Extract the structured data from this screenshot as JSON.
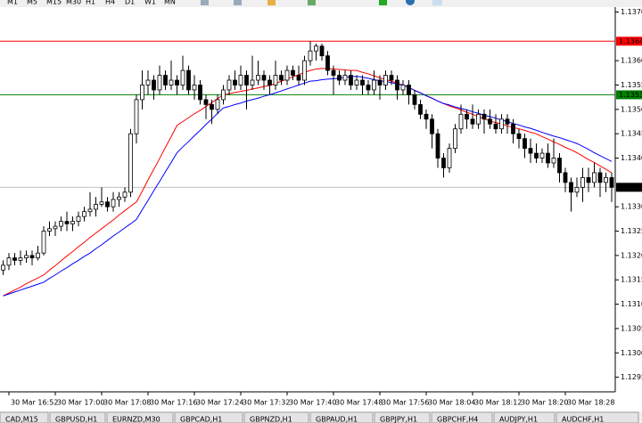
{
  "chart_data": {
    "type": "candlestick",
    "categories": [
      null,
      "30 Mar 16:52",
      null,
      null,
      null,
      null,
      null,
      null,
      null,
      "30 Mar 17:00",
      null,
      null,
      null,
      null,
      null,
      null,
      null,
      "30 Mar 17:08",
      null,
      null,
      null,
      null,
      null,
      null,
      null,
      "30 Mar 17:16",
      null,
      null,
      null,
      null,
      null,
      null,
      null,
      "30 Mar 17:24",
      null,
      null,
      null,
      null,
      null,
      null,
      null,
      "30 Mar 17:32",
      null,
      null,
      null,
      null,
      null,
      null,
      null,
      "30 Mar 17:40",
      null,
      null,
      null,
      null,
      null,
      null,
      null,
      "30 Mar 17:48",
      null,
      null,
      null,
      null,
      null,
      null,
      null,
      "30 Mar 17:56",
      null,
      null,
      null,
      null,
      null,
      null,
      null,
      "30 Mar 18:04",
      null,
      null,
      null,
      null,
      null,
      null,
      null,
      "30 Mar 18:12",
      null,
      null,
      null,
      null,
      null,
      null,
      null,
      "30 Mar 18:20",
      null,
      null,
      null,
      null,
      null,
      null,
      null,
      "30 Mar 18:28",
      null,
      null,
      null,
      null,
      null,
      null,
      null,
      null
    ],
    "candles": [
      [
        1.1317,
        1.1319,
        1.1316,
        1.1318
      ],
      [
        1.1318,
        1.13205,
        1.1317,
        1.13195
      ],
      [
        1.13195,
        1.13205,
        1.1318,
        1.1319
      ],
      [
        1.1319,
        1.1321,
        1.1318,
        1.13195
      ],
      [
        1.13195,
        1.1321,
        1.13185,
        1.132
      ],
      [
        1.132,
        1.1321,
        1.1318,
        1.13195
      ],
      [
        1.13195,
        1.1322,
        1.1319,
        1.13205
      ],
      [
        1.13205,
        1.1326,
        1.132,
        1.1325
      ],
      [
        1.1325,
        1.1327,
        1.1324,
        1.13255
      ],
      [
        1.13255,
        1.1327,
        1.1324,
        1.1326
      ],
      [
        1.1326,
        1.1328,
        1.1325,
        1.1327
      ],
      [
        1.1327,
        1.1329,
        1.1325,
        1.13265
      ],
      [
        1.13265,
        1.1328,
        1.1325,
        1.1327
      ],
      [
        1.1327,
        1.1329,
        1.1326,
        1.1328
      ],
      [
        1.1328,
        1.133,
        1.1327,
        1.1329
      ],
      [
        1.1329,
        1.1333,
        1.1328,
        1.13295
      ],
      [
        1.13295,
        1.1332,
        1.1328,
        1.13305
      ],
      [
        1.13305,
        1.1334,
        1.133,
        1.1331
      ],
      [
        1.1331,
        1.1332,
        1.1329,
        1.133
      ],
      [
        1.133,
        1.1333,
        1.1329,
        1.13315
      ],
      [
        1.13315,
        1.1333,
        1.133,
        1.1332
      ],
      [
        1.1332,
        1.1334,
        1.1331,
        1.1333
      ],
      [
        1.1333,
        1.1346,
        1.1332,
        1.1345
      ],
      [
        1.1345,
        1.1353,
        1.1343,
        1.1352
      ],
      [
        1.1352,
        1.1358,
        1.135,
        1.1355
      ],
      [
        1.1355,
        1.1358,
        1.1353,
        1.1356
      ],
      [
        1.1356,
        1.1357,
        1.1352,
        1.1354
      ],
      [
        1.1354,
        1.1359,
        1.1353,
        1.1357
      ],
      [
        1.1357,
        1.1358,
        1.1354,
        1.1355
      ],
      [
        1.1355,
        1.136,
        1.1354,
        1.1356
      ],
      [
        1.1356,
        1.1357,
        1.1353,
        1.1355
      ],
      [
        1.1355,
        1.1361,
        1.1354,
        1.1358
      ],
      [
        1.1358,
        1.1359,
        1.1353,
        1.1354
      ],
      [
        1.1354,
        1.1357,
        1.1352,
        1.1355
      ],
      [
        1.1355,
        1.1356,
        1.1351,
        1.1352
      ],
      [
        1.1352,
        1.1353,
        1.1348,
        1.1351
      ],
      [
        1.1351,
        1.1352,
        1.1347,
        1.135
      ],
      [
        1.135,
        1.1353,
        1.1349,
        1.1352
      ],
      [
        1.1352,
        1.1355,
        1.1351,
        1.1354
      ],
      [
        1.1354,
        1.1357,
        1.1353,
        1.1356
      ],
      [
        1.1356,
        1.1358,
        1.1354,
        1.1355
      ],
      [
        1.1355,
        1.1359,
        1.1354,
        1.1357
      ],
      [
        1.1357,
        1.1358,
        1.135,
        1.1355
      ],
      [
        1.1355,
        1.1361,
        1.1354,
        1.1356
      ],
      [
        1.1356,
        1.136,
        1.1355,
        1.1357
      ],
      [
        1.1357,
        1.1358,
        1.1354,
        1.1356
      ],
      [
        1.1356,
        1.1357,
        1.1353,
        1.1355
      ],
      [
        1.1355,
        1.136,
        1.1354,
        1.1357
      ],
      [
        1.1357,
        1.1358,
        1.1355,
        1.1356
      ],
      [
        1.1356,
        1.1359,
        1.1355,
        1.1358
      ],
      [
        1.1358,
        1.1359,
        1.1356,
        1.1357
      ],
      [
        1.1357,
        1.1359,
        1.1355,
        1.1356
      ],
      [
        1.1356,
        1.1361,
        1.1355,
        1.136
      ],
      [
        1.136,
        1.1364,
        1.1359,
        1.1362
      ],
      [
        1.1362,
        1.13635,
        1.136,
        1.1363
      ],
      [
        1.1363,
        1.13635,
        1.136,
        1.1361
      ],
      [
        1.1361,
        1.1362,
        1.1357,
        1.1358
      ],
      [
        1.1358,
        1.1359,
        1.1353,
        1.1357
      ],
      [
        1.1357,
        1.1358,
        1.1355,
        1.1356
      ],
      [
        1.1356,
        1.1358,
        1.1355,
        1.1357
      ],
      [
        1.1357,
        1.1358,
        1.1354,
        1.1355
      ],
      [
        1.1355,
        1.1357,
        1.1354,
        1.1356
      ],
      [
        1.1356,
        1.1357,
        1.1353,
        1.1355
      ],
      [
        1.1355,
        1.1356,
        1.1353,
        1.1354
      ],
      [
        1.1354,
        1.1358,
        1.1353,
        1.1356
      ],
      [
        1.1356,
        1.1357,
        1.1352,
        1.1355
      ],
      [
        1.1355,
        1.1358,
        1.1354,
        1.1357
      ],
      [
        1.1357,
        1.1358,
        1.1355,
        1.1356
      ],
      [
        1.1356,
        1.1357,
        1.1352,
        1.1354
      ],
      [
        1.1354,
        1.1356,
        1.1353,
        1.1355
      ],
      [
        1.1355,
        1.1356,
        1.1351,
        1.1353
      ],
      [
        1.1353,
        1.1354,
        1.135,
        1.1351
      ],
      [
        1.1351,
        1.1352,
        1.1348,
        1.1349
      ],
      [
        1.1349,
        1.135,
        1.1346,
        1.1348
      ],
      [
        1.1348,
        1.1349,
        1.1342,
        1.1345
      ],
      [
        1.1345,
        1.1346,
        1.1338,
        1.134
      ],
      [
        1.134,
        1.1341,
        1.1336,
        1.1338
      ],
      [
        1.1338,
        1.1343,
        1.1337,
        1.1342
      ],
      [
        1.1342,
        1.1347,
        1.1341,
        1.1346
      ],
      [
        1.1346,
        1.1351,
        1.1345,
        1.1349
      ],
      [
        1.1349,
        1.135,
        1.1346,
        1.1348
      ],
      [
        1.1348,
        1.1351,
        1.1346,
        1.1347
      ],
      [
        1.1347,
        1.135,
        1.1346,
        1.1349
      ],
      [
        1.1349,
        1.135,
        1.1345,
        1.1348
      ],
      [
        1.1348,
        1.135,
        1.1346,
        1.1347
      ],
      [
        1.1347,
        1.1349,
        1.1345,
        1.1346
      ],
      [
        1.1346,
        1.1349,
        1.1345,
        1.1348
      ],
      [
        1.1348,
        1.1349,
        1.1345,
        1.1347
      ],
      [
        1.1347,
        1.1348,
        1.1343,
        1.1345
      ],
      [
        1.1345,
        1.1346,
        1.1342,
        1.1344
      ],
      [
        1.1344,
        1.1345,
        1.134,
        1.1342
      ],
      [
        1.1342,
        1.1344,
        1.1339,
        1.1341
      ],
      [
        1.1341,
        1.1343,
        1.1339,
        1.134
      ],
      [
        1.134,
        1.1342,
        1.1339,
        1.1341
      ],
      [
        1.1341,
        1.1343,
        1.1338,
        1.1339
      ],
      [
        1.1339,
        1.1344,
        1.1338,
        1.134
      ],
      [
        1.134,
        1.1341,
        1.1335,
        1.1337
      ],
      [
        1.1337,
        1.1338,
        1.1333,
        1.1335
      ],
      [
        1.1335,
        1.1336,
        1.1329,
        1.1333
      ],
      [
        1.1333,
        1.1336,
        1.1332,
        1.1334
      ],
      [
        1.1334,
        1.1338,
        1.1331,
        1.1336
      ],
      [
        1.1336,
        1.1338,
        1.1333,
        1.1335
      ],
      [
        1.1335,
        1.1339,
        1.1334,
        1.1337
      ],
      [
        1.1337,
        1.1338,
        1.1332,
        1.1335
      ],
      [
        1.1335,
        1.1337,
        1.1333,
        1.1336
      ],
      [
        1.1336,
        1.1337,
        1.1331,
        1.1334
      ]
    ],
    "up_color": "#ffffff",
    "down_color": "#000000",
    "outline": "#000000",
    "lines": [
      {
        "color": "#ff0000",
        "values": [
          1.13117,
          1.13123,
          1.13129,
          1.13135,
          1.13142,
          1.13148,
          1.13154,
          1.1316,
          1.1317,
          1.13179,
          1.13189,
          1.13199,
          1.13208,
          1.13218,
          1.13227,
          1.13237,
          1.13246,
          1.13255,
          1.13264,
          1.13273,
          1.13283,
          1.13292,
          1.13301,
          1.1331,
          1.13332,
          1.13355,
          1.13377,
          1.13399,
          1.13422,
          1.13444,
          1.13467,
          1.13475,
          1.13483,
          1.13491,
          1.13498,
          1.13506,
          1.13514,
          1.13522,
          1.1353,
          1.13532,
          1.13535,
          1.13537,
          1.13539,
          1.13542,
          1.13544,
          1.13547,
          1.13549,
          1.13553,
          1.13558,
          1.13562,
          1.13567,
          1.13571,
          1.13576,
          1.1358,
          1.13583,
          1.13584,
          1.13584,
          1.13583,
          1.13582,
          1.13581,
          1.1358,
          1.1358,
          1.13576,
          1.13573,
          1.13569,
          1.13565,
          1.13561,
          1.13558,
          1.13554,
          1.1355,
          1.13545,
          1.13539,
          1.13534,
          1.13528,
          1.13523,
          1.13517,
          1.13512,
          1.13507,
          1.13503,
          1.13499,
          1.13494,
          1.1349,
          1.13485,
          1.13481,
          1.13476,
          1.13473,
          1.1347,
          1.13466,
          1.13463,
          1.1346,
          1.13457,
          1.13453,
          1.1345,
          1.13444,
          1.13439,
          1.13433,
          1.13428,
          1.13422,
          1.13417,
          1.13411,
          1.13404,
          1.13397,
          1.13391,
          1.13384,
          1.13377,
          1.1337
        ]
      },
      {
        "color": "#0000ff",
        "values": [
          1.13117,
          1.13121,
          1.13125,
          1.13129,
          1.13133,
          1.13137,
          1.13141,
          1.13145,
          1.13153,
          1.1316,
          1.13168,
          1.13175,
          1.13183,
          1.1319,
          1.13198,
          1.13205,
          1.13214,
          1.13222,
          1.13231,
          1.1324,
          1.13248,
          1.13257,
          1.13265,
          1.13274,
          1.13294,
          1.13313,
          1.13333,
          1.13352,
          1.13372,
          1.13391,
          1.13411,
          1.13423,
          1.13434,
          1.13446,
          1.13457,
          1.13469,
          1.1348,
          1.13492,
          1.13503,
          1.13506,
          1.1351,
          1.13513,
          1.13517,
          1.1352,
          1.13523,
          1.13527,
          1.1353,
          1.13534,
          1.13538,
          1.13542,
          1.13546,
          1.1355,
          1.13554,
          1.13558,
          1.13559,
          1.13561,
          1.13562,
          1.13563,
          1.13564,
          1.13566,
          1.13567,
          1.13568,
          1.13566,
          1.13564,
          1.13561,
          1.13559,
          1.13557,
          1.13555,
          1.13552,
          1.1355,
          1.13545,
          1.13539,
          1.13534,
          1.13528,
          1.13523,
          1.13517,
          1.13512,
          1.13509,
          1.13505,
          1.13502,
          1.13499,
          1.13495,
          1.13492,
          1.13488,
          1.13485,
          1.13482,
          1.13478,
          1.13475,
          1.13471,
          1.13468,
          1.13464,
          1.13461,
          1.13457,
          1.13453,
          1.13449,
          1.13445,
          1.13442,
          1.13438,
          1.13434,
          1.1343,
          1.13424,
          1.13418,
          1.13411,
          1.13405,
          1.13399,
          1.13393
        ]
      }
    ],
    "ylim": [
      1.1292,
      1.1371
    ],
    "yticks": [
      {
        "value": 1.137,
        "label": "1.1370"
      },
      {
        "value": 1.136,
        "label": "1.1360"
      },
      1.1355,
      {
        "value": 1.135,
        "label": "1.1350"
      },
      1.1345,
      {
        "value": 1.134,
        "label": "1.1340"
      },
      {
        "value": 1.133,
        "label": "1.1330"
      },
      1.1325,
      {
        "value": 1.132,
        "label": "1.1320"
      },
      1.1315,
      {
        "value": 1.131,
        "label": "1.1310"
      },
      1.1305,
      {
        "value": 1.13,
        "label": "1.1300"
      },
      1.1295
    ],
    "levels": [
      {
        "value": 1.1364,
        "color": "#ff0000",
        "box_color": "#ff0000"
      },
      {
        "value": 1.1353,
        "color": "#008000",
        "box_color": "#008000"
      },
      {
        "value": 1.1334,
        "color": "#c0c0c0",
        "box_color": "#000000"
      }
    ]
  },
  "toolbar": [
    "M1",
    "M5",
    "M15",
    "M30",
    "H1",
    "H4",
    "D1",
    "W1",
    "MN"
  ],
  "tabs": [
    "CAD,M15",
    "GBPUSD,H1",
    "EURNZD,M30",
    "GBPCAD,H1",
    "GBPNZD,H1",
    "GBPAUD,H1",
    "GBPJPY,H1",
    "GBPCHF,H4",
    "AUDJPY,H1",
    "AUDCHF,H1"
  ]
}
